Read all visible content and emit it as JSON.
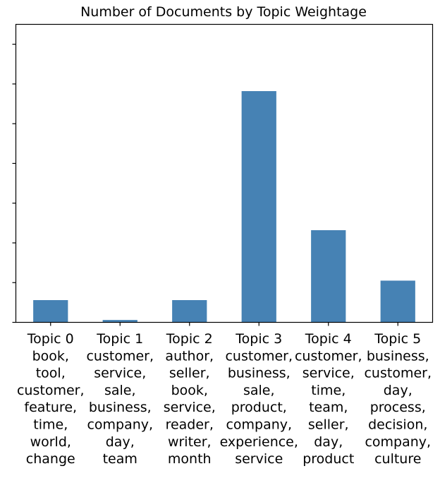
{
  "chart_data": {
    "type": "bar",
    "title": "Number of Documents by Topic Weightage",
    "xlabel": "",
    "ylabel": "",
    "ylim": [
      0,
      7.5
    ],
    "yticks": [
      0,
      1,
      2,
      3,
      4,
      5,
      6,
      7
    ],
    "y_tick_labels_visible": false,
    "grid": false,
    "bar_color": "#4682b4",
    "categories": [
      [
        "Topic 0",
        "book,",
        "tool,",
        "customer,",
        "feature,",
        "time,",
        "world,",
        "change"
      ],
      [
        "Topic 1",
        "customer,",
        "service,",
        "sale,",
        "business,",
        "company,",
        "day,",
        "team"
      ],
      [
        "Topic 2",
        "author,",
        "seller,",
        "book,",
        "service,",
        "reader,",
        "writer,",
        "month"
      ],
      [
        "Topic 3",
        "customer,",
        "business,",
        "sale,",
        "product,",
        "company,",
        "experience,",
        "service"
      ],
      [
        "Topic 4",
        "customer,",
        "service,",
        "time,",
        "team,",
        "seller,",
        "day,",
        "product"
      ],
      [
        "Topic 5",
        "business,",
        "customer,",
        "day,",
        "process,",
        "decision,",
        "company,",
        "culture"
      ]
    ],
    "values": [
      0.56,
      0.06,
      0.56,
      5.82,
      2.32,
      1.05
    ]
  }
}
